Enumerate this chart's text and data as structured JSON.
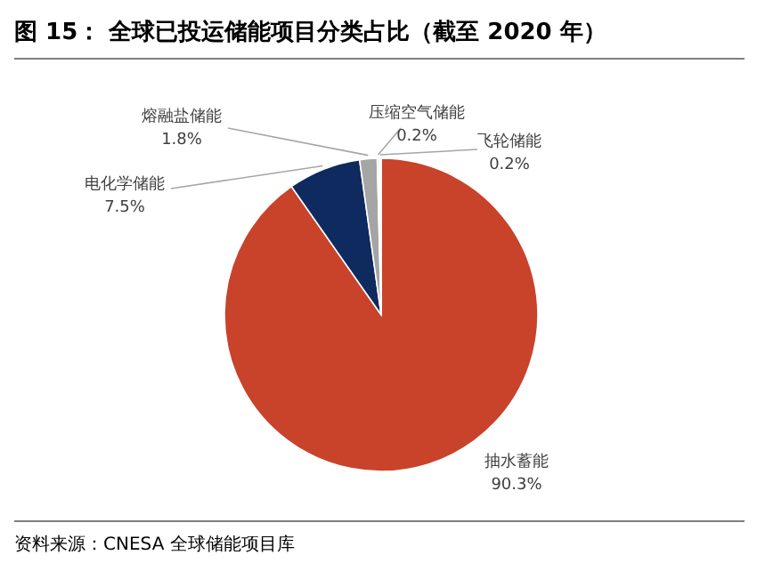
{
  "chart_data": {
    "type": "pie",
    "title": "图 15：  全球已投运储能项目分类占比（截至 2020 年）",
    "categories": [
      "抽水蓄能",
      "电化学储能",
      "熔融盐储能",
      "压缩空气储能",
      "飞轮储能"
    ],
    "values": [
      90.3,
      7.5,
      1.8,
      0.2,
      0.2
    ],
    "value_labels": [
      "90.3%",
      "7.5%",
      "1.8%",
      "0.2%",
      "0.2%"
    ],
    "colors": [
      "#c8432a",
      "#0e2a5e",
      "#a5a5a5",
      "#d9d9d9",
      "#f2f2f2"
    ],
    "annotations": [
      "资料来源：CNESA 全球储能项目库"
    ]
  }
}
